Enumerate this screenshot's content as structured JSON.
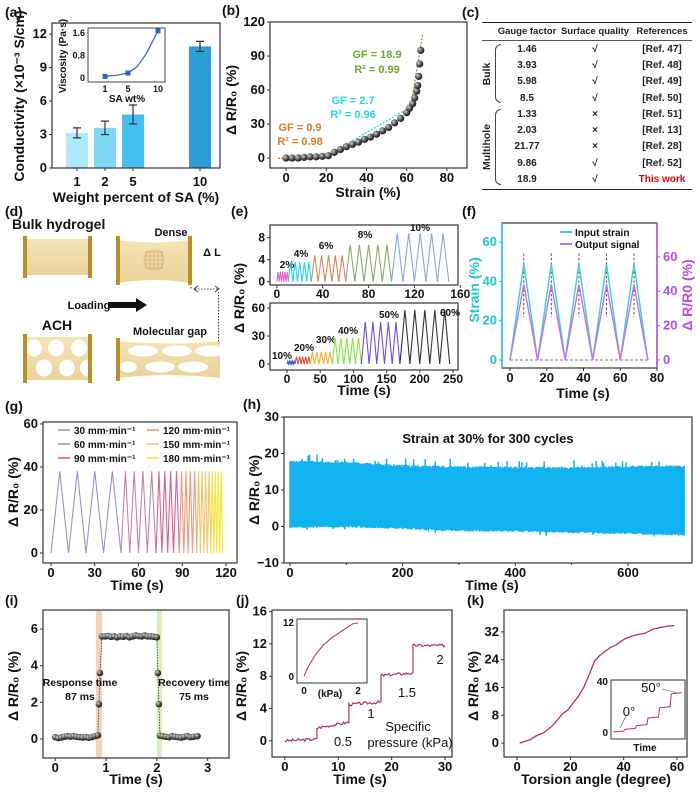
{
  "panel_labels": [
    "(a)",
    "(b)",
    "(c)",
    "(d)",
    "(e)",
    "(f)",
    "(g)",
    "(h)",
    "(i)",
    "(j)",
    "(k)"
  ],
  "diagram": {
    "bulk_label": "Bulk hydrogel",
    "dense_label": "Dense",
    "delta_l_label": "Δ L",
    "loading_label": "Loading",
    "ach_label": "ACH",
    "gap_label": "Molecular gap",
    "colors": {
      "gel": "#f0dca8",
      "clamp": "#b8902a"
    }
  },
  "chart_data": [
    {
      "panel": "a",
      "type": "bar",
      "categories": [
        "1",
        "2",
        "5",
        "10"
      ],
      "values": [
        3.15,
        3.6,
        4.8,
        10.9
      ],
      "errors": [
        0.45,
        0.6,
        0.85,
        0.45
      ],
      "colors": [
        "#aee9fb",
        "#7fd7f6",
        "#45c1f1",
        "#2b9fd5"
      ],
      "xlabel": "Weight percent of SA (%)",
      "ylabel": "Conductivity (×10⁻³ S/cm)",
      "ylim": [
        0,
        13
      ],
      "yticks": [
        0,
        3,
        6,
        9,
        12
      ],
      "inset": {
        "type": "line",
        "x": [
          1,
          5,
          10
        ],
        "y": [
          0.06,
          0.18,
          1.68
        ],
        "curve": [
          [
            1,
            0.06
          ],
          [
            3,
            0.1
          ],
          [
            5,
            0.18
          ],
          [
            6.5,
            0.4
          ],
          [
            8,
            0.85
          ],
          [
            10,
            1.68
          ]
        ],
        "xticks": [
          "1",
          "5",
          "10"
        ],
        "yticks": [
          0,
          0.8,
          1.6
        ],
        "ytick_labels": [
          "0",
          "0.8",
          "1.6"
        ],
        "ylim": [
          -0.14,
          1.78
        ],
        "xlabel": "SA wt%",
        "ylabel": "Viscosity (Pa·s)",
        "color": "#3060c0"
      }
    },
    {
      "panel": "b",
      "type": "scatter",
      "x": [
        0,
        3,
        6,
        9,
        12,
        15,
        18,
        21,
        24,
        27,
        30,
        33,
        36,
        39,
        42,
        45,
        48,
        51,
        54,
        57,
        60,
        61.5,
        63,
        64,
        65,
        65.5,
        66,
        66.5,
        67
      ],
      "y": [
        0,
        0,
        0,
        0.5,
        1,
        1,
        1.5,
        2,
        5,
        7.5,
        10,
        12,
        14,
        16.5,
        18.5,
        21,
        24,
        27,
        31,
        35,
        40,
        44,
        48,
        53,
        59,
        64,
        72,
        83,
        95
      ],
      "fits": [
        {
          "label": "GF = 0.9",
          "r2": "R² = 0.98",
          "color": "#e07828",
          "line": [
            [
              -4,
              -0.4
            ],
            [
              22,
              2.2
            ]
          ]
        },
        {
          "label": "GF = 2.7",
          "r2": "R² = 0.96",
          "color": "#1ed8e8",
          "line": [
            [
              18,
              0
            ],
            [
              63,
              46
            ]
          ]
        },
        {
          "label": "GF = 18.9",
          "r2": "R² = 0.99",
          "color": "#6ca832",
          "line": [
            [
              61.5,
              40
            ],
            [
              68,
              110
            ]
          ]
        }
      ],
      "xlabel": "Strain (%)",
      "ylabel": "Δ R/R₀ (%)",
      "xlim": [
        -8,
        90
      ],
      "ylim": [
        -8.8,
        120
      ],
      "xticks": [
        0,
        20,
        40,
        60,
        80
      ],
      "yticks": [
        0,
        30,
        60,
        90,
        120
      ]
    },
    {
      "panel": "c",
      "type": "table",
      "headers": [
        "Gauge factor",
        "Surface quality",
        "References"
      ],
      "groups": [
        {
          "name": "Bulk",
          "rows": [
            [
              "1.46",
              "√",
              "[Ref. 47]"
            ],
            [
              "3.93",
              "√",
              "[Ref. 48]"
            ],
            [
              "5.98",
              "√",
              "[Ref. 49]"
            ],
            [
              "8.5",
              "√",
              "[Ref. 50]"
            ]
          ]
        },
        {
          "name": "Multihole",
          "rows": [
            [
              "1.33",
              "×",
              "[Ref. 51]"
            ],
            [
              "2.03",
              "×",
              "[Ref. 13]"
            ],
            [
              "21.77",
              "×",
              "[Ref. 28]"
            ],
            [
              "9.86",
              "√",
              "[Ref. 52]"
            ],
            [
              "18.9",
              "√",
              "This work"
            ]
          ]
        }
      ],
      "highlight_color": "#e00000"
    },
    {
      "panel": "e",
      "type": "line",
      "xlabel": "Time (s)",
      "ylabel": "Δ R/R₀ (%)",
      "subplots": [
        {
          "xlim": [
            -6,
            158
          ],
          "ylim": [
            -0.6,
            10.3
          ],
          "xticks": [
            0,
            40,
            80,
            120,
            160
          ],
          "yticks": [
            0,
            4,
            8
          ],
          "segments": [
            {
              "label": "2%",
              "t": [
                0,
                10
              ],
              "amp": 1.8,
              "cycles": 5,
              "color": "#e565c8"
            },
            {
              "label": "4%",
              "t": [
                10,
                30
              ],
              "amp": 3.6,
              "cycles": 5,
              "color": "#25d5e5"
            },
            {
              "label": "6%",
              "t": [
                30,
                60
              ],
              "amp": 4.8,
              "cycles": 5,
              "color": "#d4845a"
            },
            {
              "label": "8%",
              "t": [
                60,
                100
              ],
              "amp": 6.7,
              "cycles": 5,
              "color": "#85aa68"
            },
            {
              "label": "10%",
              "t": [
                100,
                150
              ],
              "amp": 8.8,
              "cycles": 5,
              "color": "#84acd2"
            }
          ]
        },
        {
          "xlim": [
            -25.6,
            257.5
          ],
          "ylim": [
            -6.4,
            65.4
          ],
          "xticks": [
            0,
            50,
            100,
            150,
            200,
            250
          ],
          "yticks": [
            0,
            30,
            60
          ],
          "segments": [
            {
              "label": "10%",
              "t": [
                0,
                12
              ],
              "amp": 3,
              "cycles": 5,
              "color": "#2a64c4"
            },
            {
              "label": "20%",
              "t": [
                12,
                35
              ],
              "amp": 8,
              "cycles": 5,
              "color": "#e24a3a"
            },
            {
              "label": "30%",
              "t": [
                35,
                68
              ],
              "amp": 13,
              "cycles": 5,
              "color": "#f2b432"
            },
            {
              "label": "40%",
              "t": [
                68,
                112
              ],
              "amp": 28,
              "cycles": 5,
              "color": "#86e44a"
            },
            {
              "label": "50%",
              "t": [
                112,
                170
              ],
              "amp": 45,
              "cycles": 5,
              "color": "#6a4ee4"
            },
            {
              "label": "60%",
              "t": [
                170,
                245
              ],
              "amp": 58,
              "cycles": 5,
              "color": "#333333"
            }
          ]
        }
      ]
    },
    {
      "panel": "f",
      "type": "line",
      "xlabel": "Time (s)",
      "ylabel_left": "Strain (%)",
      "ylabel_right": "Δ R/R0 (%)",
      "xlim": [
        -4.35,
        80
      ],
      "ylim_left": [
        -4.07,
        69.7
      ],
      "ylim_right": [
        -4.65,
        79.7
      ],
      "xticks": [
        0,
        20,
        40,
        60,
        80
      ],
      "yticks_left": [
        0,
        20,
        40,
        60
      ],
      "yticks_right": [
        0,
        20,
        40,
        60
      ],
      "period": 15,
      "cycles": 5,
      "strain_peak": 49,
      "signal_peak": 44,
      "legend": [
        "Input strain",
        "Output signal"
      ],
      "colors": {
        "strain": "#3ccfc8",
        "signal": "#c86ef0",
        "left_axis": "#1ec8c8",
        "right_axis": "#b44ef0"
      }
    },
    {
      "panel": "g",
      "type": "line",
      "xlabel": "Time (s)",
      "ylabel": "Δ R/R₀ (%)",
      "xlim": [
        -5.5,
        127.5
      ],
      "ylim": [
        -4.65,
        60.9
      ],
      "xticks": [
        0,
        30,
        60,
        90,
        120
      ],
      "yticks": [
        0,
        20,
        40,
        60
      ],
      "series": [
        {
          "name": "30 mm·min⁻¹",
          "t": [
            0,
            48
          ],
          "cycles": 4,
          "amp": 38,
          "color": "#9494c8"
        },
        {
          "name": "60 mm·min⁻¹",
          "t": [
            48,
            72
          ],
          "cycles": 4,
          "amp": 38,
          "color": "#c084aa"
        },
        {
          "name": "90 mm·min⁻¹",
          "t": [
            72,
            88
          ],
          "cycles": 4,
          "amp": 38,
          "color": "#d86488"
        },
        {
          "name": "120 mm·min⁻¹",
          "t": [
            88,
            100
          ],
          "cycles": 4,
          "amp": 38,
          "color": "#eb9a7a"
        },
        {
          "name": "150 mm·min⁻¹",
          "t": [
            100,
            109.6
          ],
          "cycles": 4,
          "amp": 38,
          "color": "#f2c868"
        },
        {
          "name": "180 mm·min⁻¹",
          "t": [
            109.6,
            117.6
          ],
          "cycles": 4,
          "amp": 38,
          "color": "#f8e438"
        }
      ]
    },
    {
      "panel": "h",
      "type": "area",
      "title": "Strain at 30% for 300 cycles",
      "xlabel": "Time (s)",
      "ylabel": "Δ R/R₀ (%)",
      "xlim": [
        -10.6,
        713.6
      ],
      "ylim": [
        -10,
        30
      ],
      "xticks": [
        0,
        200,
        400,
        600
      ],
      "yticks": [
        -10,
        0,
        10,
        20,
        30
      ],
      "ytick_labels": [
        "−10",
        "0",
        "10",
        "20",
        "30"
      ],
      "cycles": 300,
      "duration": 700,
      "color": "#10b2f0",
      "upper_envelope": [
        [
          0,
          17.8
        ],
        [
          100,
          17.5
        ],
        [
          200,
          16.6
        ],
        [
          300,
          16.3
        ],
        [
          400,
          16.2
        ],
        [
          500,
          16
        ],
        [
          600,
          16.4
        ],
        [
          700,
          16.5
        ]
      ],
      "lower_envelope": [
        [
          0,
          -0.2
        ],
        [
          100,
          0
        ],
        [
          200,
          -0.5
        ],
        [
          300,
          -1.1
        ],
        [
          400,
          -1.2
        ],
        [
          500,
          -1.6
        ],
        [
          600,
          -1.9
        ],
        [
          700,
          -2.3
        ]
      ]
    },
    {
      "panel": "i",
      "type": "scatter",
      "xlabel": "Time (s)",
      "ylabel": "Δ R/R₀ (%)",
      "xlim": [
        -0.24,
        3.42
      ],
      "ylim": [
        -1.04,
        7.04
      ],
      "xticks": [
        0,
        1,
        2,
        3
      ],
      "yticks": [
        0,
        2,
        4,
        6
      ],
      "x": [
        0,
        0.06,
        0.12,
        0.18,
        0.24,
        0.3,
        0.36,
        0.42,
        0.48,
        0.54,
        0.6,
        0.66,
        0.72,
        0.78,
        0.84,
        0.86,
        0.88,
        0.92,
        0.98,
        1.04,
        1.1,
        1.16,
        1.22,
        1.28,
        1.34,
        1.4,
        1.46,
        1.52,
        1.58,
        1.64,
        1.7,
        1.76,
        1.82,
        1.88,
        1.94,
        2.0,
        2.02,
        2.04,
        2.06,
        2.12,
        2.18,
        2.24,
        2.3,
        2.36,
        2.42,
        2.48,
        2.54,
        2.6,
        2.66,
        2.72,
        2.8
      ],
      "y": [
        0.1,
        0.05,
        0.08,
        0.12,
        0.15,
        0.13,
        0.15,
        0.12,
        0.1,
        0.08,
        0.1,
        0.07,
        0.1,
        0.15,
        0.2,
        1.9,
        3.6,
        5.6,
        5.6,
        5.62,
        5.58,
        5.6,
        5.55,
        5.6,
        5.58,
        5.62,
        5.55,
        5.6,
        5.65,
        5.62,
        5.6,
        5.65,
        5.6,
        5.6,
        5.58,
        5.55,
        3.6,
        1.9,
        0.18,
        0.15,
        0.12,
        0.1,
        0.15,
        0.12,
        0.1,
        0.08,
        0.12,
        0.15,
        0.1,
        0.12,
        0.15
      ],
      "bands": [
        {
          "range": [
            0.8,
            0.92
          ],
          "color": "#f6d2b8"
        },
        {
          "range": [
            2.0,
            2.1
          ],
          "color": "#d8ecc8"
        }
      ],
      "annotations": [
        {
          "title": "Response time",
          "value": "87 ms"
        },
        {
          "title": "Recovery time",
          "value": "75 ms"
        }
      ]
    },
    {
      "panel": "j",
      "type": "line",
      "xlabel": "Time (s)",
      "ylabel": "Δ R/R₀ (%)",
      "xlim": [
        -2.4,
        31.3
      ],
      "ylim": [
        -2,
        16.2
      ],
      "xticks": [
        0,
        10,
        20,
        30
      ],
      "yticks": [
        0,
        4,
        8,
        12,
        16
      ],
      "steps": [
        {
          "t": [
            0,
            6
          ],
          "from": 0,
          "to": 0.2
        },
        {
          "t": [
            6,
            12
          ],
          "from": 1.6,
          "to": 2.3
        },
        {
          "t": [
            12,
            18
          ],
          "from": 4.5,
          "to": 4.8
        },
        {
          "t": [
            18,
            24
          ],
          "from": 8.1,
          "to": 8.4
        },
        {
          "t": [
            24,
            30
          ],
          "from": 11.8,
          "to": 11.8
        }
      ],
      "step_labels": [
        "0.5",
        "1",
        "1.5",
        "2"
      ],
      "annotation": [
        "Specific",
        "pressure (kPa)"
      ],
      "color": "#b8305a",
      "inset": {
        "xlabel": "(kPa)",
        "xticks": [
          0,
          2
        ],
        "yticks": [
          0,
          12
        ],
        "xlim": [
          -0.26,
          2.33
        ],
        "ylim": [
          -1.56,
          12.67
        ],
        "curve": [
          [
            0,
            0
          ],
          [
            0.15,
            2
          ],
          [
            0.4,
            4.5
          ],
          [
            0.7,
            6.8
          ],
          [
            1.0,
            8.4
          ],
          [
            1.3,
            9.6
          ],
          [
            1.6,
            10.8
          ],
          [
            1.8,
            11.6
          ],
          [
            2,
            11.8
          ]
        ]
      }
    },
    {
      "panel": "k",
      "type": "line",
      "xlabel": "Torsion angle (degree)",
      "ylabel": "Δ R/R₀ (%)",
      "xlim": [
        -4.9,
        63.75
      ],
      "ylim": [
        -4,
        38.3
      ],
      "xticks": [
        0,
        20,
        40,
        60
      ],
      "yticks": [
        0,
        8,
        16,
        24,
        32
      ],
      "x": [
        1,
        3,
        5,
        7,
        10,
        13,
        15,
        17,
        19,
        21,
        23,
        25,
        27,
        29,
        31,
        33,
        35,
        37,
        40,
        43,
        45,
        48,
        51,
        54,
        57,
        59
      ],
      "y": [
        0,
        0.5,
        1,
        2,
        3,
        4.8,
        6.5,
        8.4,
        9.5,
        11.5,
        13.5,
        16,
        19.5,
        23.5,
        25.2,
        26.4,
        27.5,
        28.2,
        29.8,
        30.8,
        31.2,
        31.6,
        32.8,
        33.3,
        33.7,
        33.8
      ],
      "color": "#b8305a",
      "inset": {
        "xlabel": "Time",
        "yticks": [
          0,
          40
        ],
        "ylim": [
          -5.5,
          40.8
        ],
        "xlim": [
          0,
          10
        ],
        "levels": [
          0,
          2,
          5,
          11,
          19,
          30
        ],
        "start_label": "0°",
        "end_label": "50°"
      }
    }
  ]
}
